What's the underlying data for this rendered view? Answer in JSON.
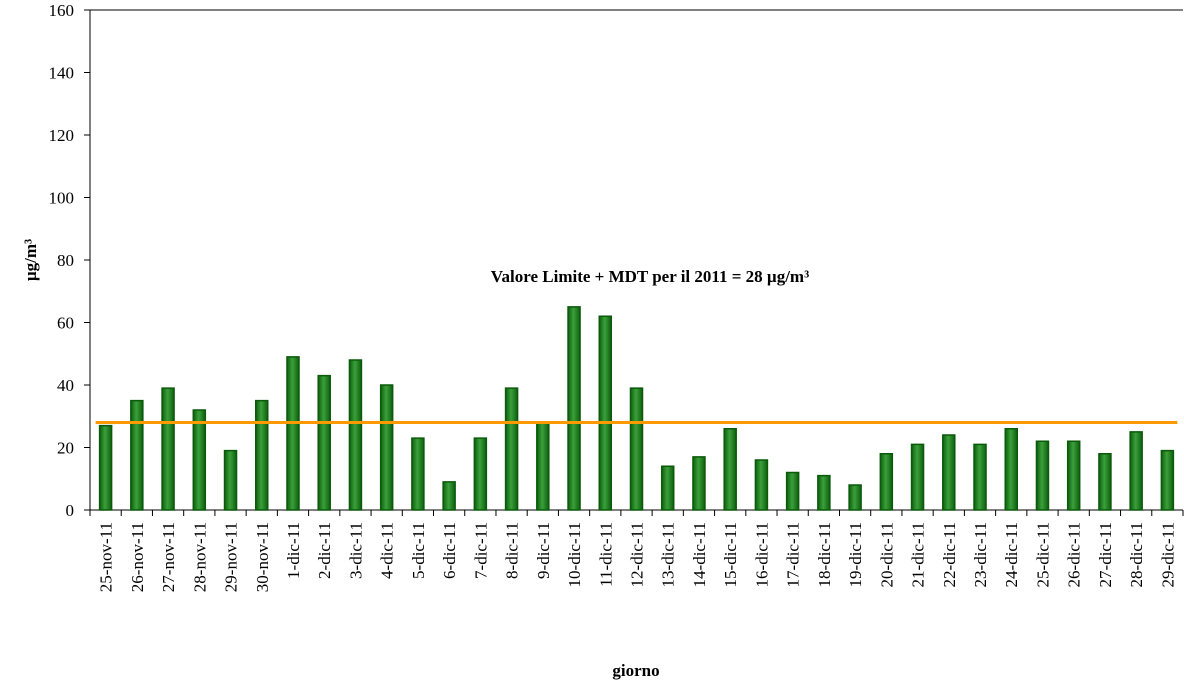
{
  "chart_data": {
    "type": "bar",
    "x_label": "giorno",
    "y_label": "µg/m³",
    "categories": [
      "25-nov-11",
      "26-nov-11",
      "27-nov-11",
      "28-nov-11",
      "29-nov-11",
      "30-nov-11",
      "1-dic-11",
      "2-dic-11",
      "3-dic-11",
      "4-dic-11",
      "5-dic-11",
      "6-dic-11",
      "7-dic-11",
      "8-dic-11",
      "9-dic-11",
      "10-dic-11",
      "11-dic-11",
      "12-dic-11",
      "13-dic-11",
      "14-dic-11",
      "15-dic-11",
      "16-dic-11",
      "17-dic-11",
      "18-dic-11",
      "19-dic-11",
      "20-dic-11",
      "21-dic-11",
      "22-dic-11",
      "23-dic-11",
      "24-dic-11",
      "25-dic-11",
      "26-dic-11",
      "27-dic-11",
      "28-dic-11",
      "29-dic-11"
    ],
    "values": [
      27,
      35,
      39,
      32,
      19,
      35,
      49,
      43,
      48,
      40,
      23,
      9,
      23,
      39,
      28,
      65,
      62,
      39,
      14,
      17,
      26,
      16,
      12,
      11,
      8,
      18,
      21,
      24,
      21,
      26,
      22,
      22,
      18,
      25,
      19
    ],
    "color": "#2a8c2a",
    "reference_line": {
      "value": 28,
      "color": "#ff9900",
      "label": "Valore Limite + MDT  per il 2011 = 28 µg/m³"
    },
    "ylim": [
      0,
      160
    ],
    "yticks": [
      0,
      20,
      40,
      60,
      80,
      100,
      120,
      140,
      160
    ]
  }
}
